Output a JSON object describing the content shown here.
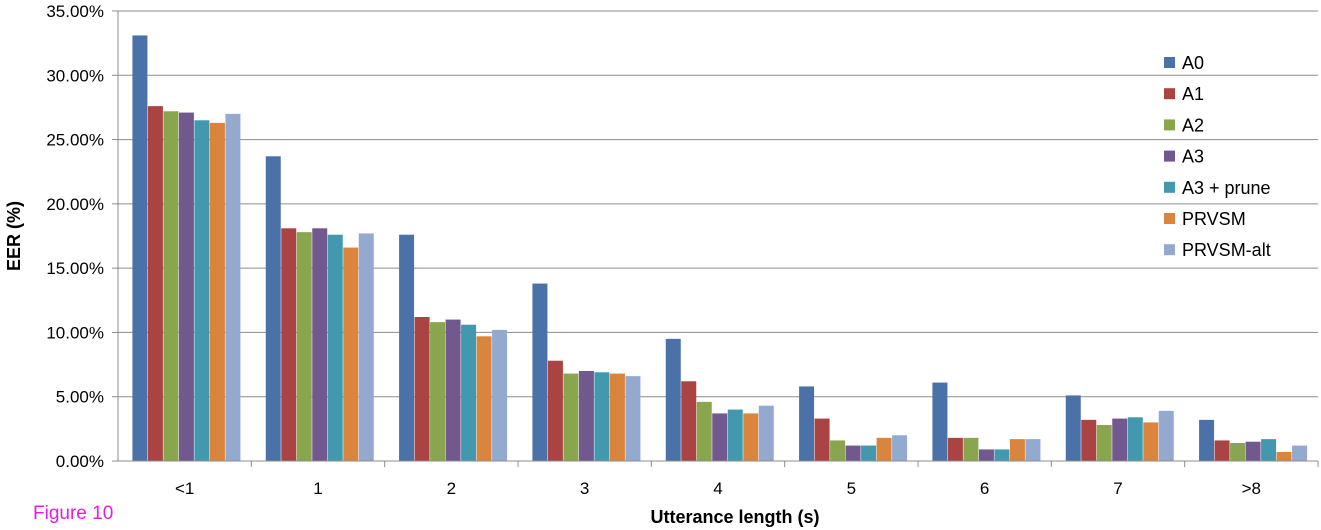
{
  "figure_label": "Figure 10",
  "chart_data": {
    "type": "bar",
    "title": "",
    "xlabel": "Utterance length (s)",
    "ylabel": "EER (%)",
    "ylim": [
      0,
      35
    ],
    "yticks": [
      0,
      5,
      10,
      15,
      20,
      25,
      30,
      35
    ],
    "ytick_labels": [
      "0.00%",
      "5.00%",
      "10.00%",
      "15.00%",
      "20.00%",
      "25.00%",
      "30.00%",
      "35.00%"
    ],
    "grid": true,
    "legend_position": "right",
    "categories": [
      "<1",
      "1",
      "2",
      "3",
      "4",
      "5",
      "6",
      "7",
      ">8"
    ],
    "series": [
      {
        "name": "A0",
        "color": "#4a72a8",
        "values": [
          33.1,
          23.7,
          17.6,
          13.8,
          9.5,
          5.8,
          6.1,
          5.1,
          3.2
        ]
      },
      {
        "name": "A1",
        "color": "#aa4443",
        "values": [
          27.6,
          18.1,
          11.2,
          7.8,
          6.2,
          3.3,
          1.8,
          3.2,
          1.6
        ]
      },
      {
        "name": "A2",
        "color": "#89a54e",
        "values": [
          27.2,
          17.8,
          10.8,
          6.8,
          4.6,
          1.6,
          1.8,
          2.8,
          1.4
        ]
      },
      {
        "name": "A3",
        "color": "#71588f",
        "values": [
          27.1,
          18.1,
          11.0,
          7.0,
          3.7,
          1.2,
          0.9,
          3.3,
          1.5
        ]
      },
      {
        "name": "A3 + prune",
        "color": "#4198af",
        "values": [
          26.5,
          17.6,
          10.6,
          6.9,
          4.0,
          1.2,
          0.9,
          3.4,
          1.7
        ]
      },
      {
        "name": "PRVSM",
        "color": "#db843d",
        "values": [
          26.3,
          16.6,
          9.7,
          6.8,
          3.7,
          1.8,
          1.7,
          3.0,
          0.7
        ]
      },
      {
        "name": "PRVSM-alt",
        "color": "#93a9cf",
        "values": [
          27.0,
          17.7,
          10.2,
          6.6,
          4.3,
          2.0,
          1.7,
          3.9,
          1.2
        ]
      }
    ]
  }
}
